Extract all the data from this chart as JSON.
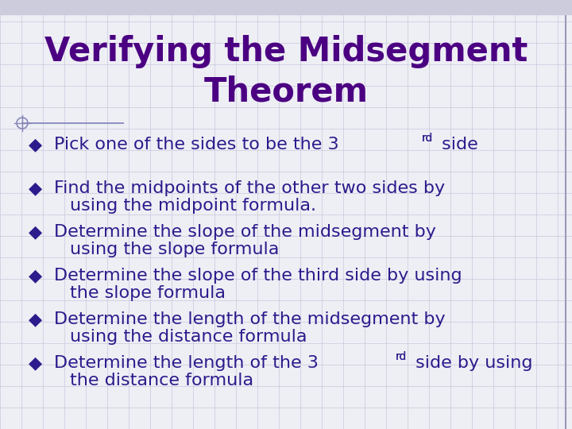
{
  "title_line1": "Verifying the Midsegment",
  "title_line2": "Theorem",
  "title_color": "#4B0082",
  "title_fontsize": 30,
  "background_color": "#EEEEF5",
  "grid_color": "#C8C8DC",
  "bullet_color": "#2B1B8C",
  "text_color": "#2B1B8C",
  "bullet_char": "◆",
  "items": [
    {
      "line1": "Pick one of the sides to be the 3",
      "sup1": "rd",
      "line1b": " side",
      "line2": null
    },
    {
      "line1": "Find the midpoints of the other two sides by",
      "sup1": null,
      "line1b": null,
      "line2": "using the midpoint formula."
    },
    {
      "line1": "Determine the slope of the midsegment by",
      "sup1": null,
      "line1b": null,
      "line2": "using the slope formula"
    },
    {
      "line1": "Determine the slope of the third side by using",
      "sup1": null,
      "line1b": null,
      "line2": "the slope formula"
    },
    {
      "line1": "Determine the length of the midsegment by",
      "sup1": null,
      "line1b": null,
      "line2": "using the distance formula"
    },
    {
      "line1": "Determine the length of the 3",
      "sup1": "rd",
      "line1b": " side by using",
      "line2": "the distance formula"
    }
  ],
  "text_fontsize": 16,
  "sup_fontsize": 10,
  "figwidth": 7.2,
  "figheight": 5.4,
  "dpi": 100
}
